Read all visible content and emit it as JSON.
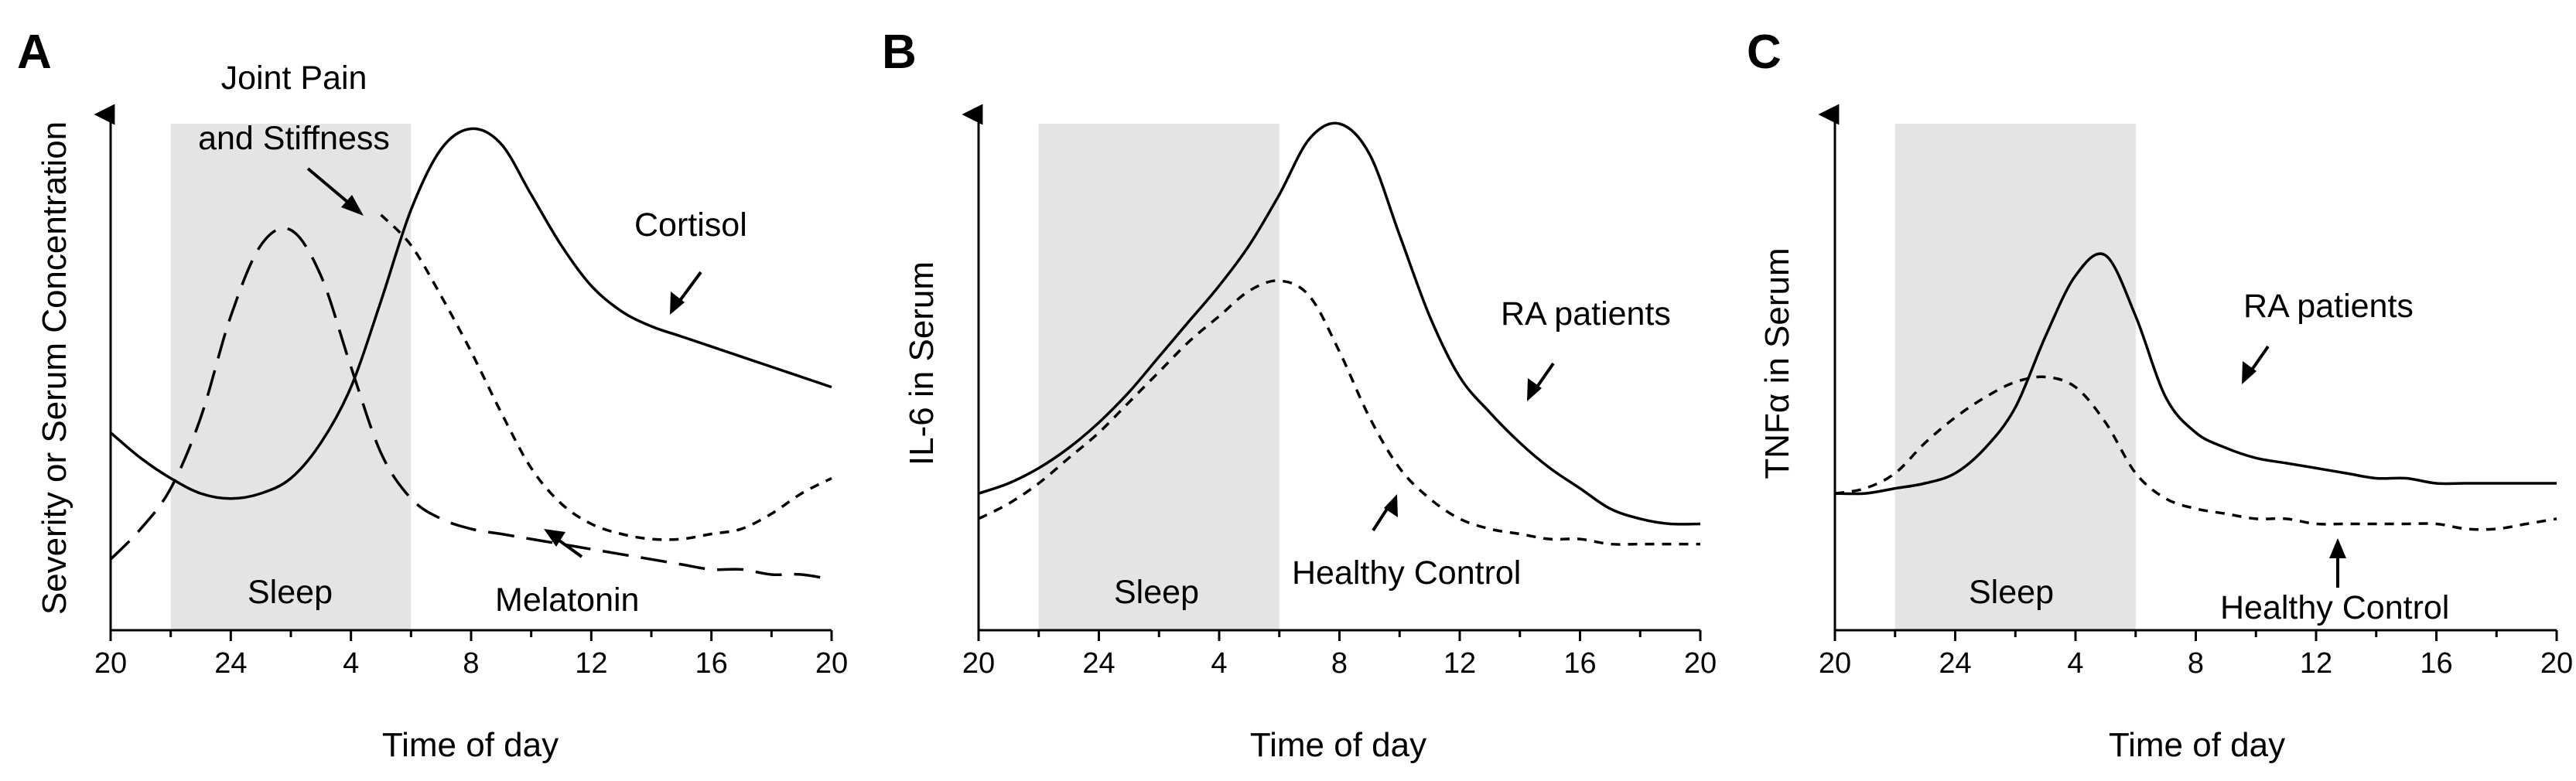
{
  "chart_data": [
    {
      "panel": "A",
      "type": "line",
      "xlabel": "Time of day",
      "ylabel": "Severity or Serum Concentration",
      "x_ticks": [
        "20",
        "24",
        "4",
        "8",
        "12",
        "16",
        "20"
      ],
      "xlim": [
        20,
        44
      ],
      "sleep_band": {
        "label": "Sleep",
        "from": 22,
        "to": 30
      },
      "y_ticks": false,
      "series": [
        {
          "name": "Cortisol",
          "style": "solid",
          "x": [
            20,
            21,
            22,
            23,
            24,
            25,
            26,
            27,
            28,
            29,
            30,
            31,
            32,
            33,
            34,
            35,
            36,
            37,
            38,
            39,
            40,
            41,
            42,
            43,
            44
          ],
          "y": [
            0.39,
            0.34,
            0.3,
            0.27,
            0.26,
            0.27,
            0.3,
            0.37,
            0.48,
            0.65,
            0.83,
            0.95,
            0.99,
            0.96,
            0.86,
            0.76,
            0.68,
            0.63,
            0.6,
            0.58,
            0.56,
            0.54,
            0.52,
            0.5,
            0.48
          ]
        },
        {
          "name": "Melatonin",
          "style": "long-dash",
          "x": [
            20,
            21,
            22,
            23,
            24,
            25,
            26,
            27,
            28,
            29,
            30,
            31,
            32,
            33,
            34,
            35,
            36,
            37,
            38,
            39,
            40,
            41,
            42,
            43,
            44
          ],
          "y": [
            0.14,
            0.2,
            0.28,
            0.42,
            0.62,
            0.76,
            0.79,
            0.7,
            0.52,
            0.35,
            0.26,
            0.22,
            0.2,
            0.19,
            0.18,
            0.17,
            0.16,
            0.15,
            0.14,
            0.13,
            0.12,
            0.12,
            0.11,
            0.11,
            0.1
          ]
        },
        {
          "name": "Joint Pain and Stiffness",
          "style": "short-dash",
          "x": [
            29,
            30,
            31,
            32,
            33,
            34,
            35,
            36,
            37,
            38,
            39,
            40,
            41,
            42,
            43,
            44
          ],
          "y": [
            0.82,
            0.76,
            0.66,
            0.55,
            0.43,
            0.32,
            0.25,
            0.21,
            0.19,
            0.18,
            0.18,
            0.19,
            0.2,
            0.23,
            0.27,
            0.3
          ]
        }
      ],
      "annotations": [
        "Joint Pain",
        "and Stiffness",
        "Cortisol",
        "Melatonin"
      ]
    },
    {
      "panel": "B",
      "type": "line",
      "xlabel": "Time of day",
      "ylabel": "IL-6 in Serum",
      "x_ticks": [
        "20",
        "24",
        "4",
        "8",
        "12",
        "16",
        "20"
      ],
      "xlim": [
        20,
        44
      ],
      "sleep_band": {
        "label": "Sleep",
        "from": 22,
        "to": 30
      },
      "y_ticks": false,
      "series": [
        {
          "name": "RA patients",
          "style": "solid",
          "x": [
            20,
            21,
            22,
            23,
            24,
            25,
            26,
            27,
            28,
            29,
            30,
            31,
            32,
            33,
            34,
            35,
            36,
            37,
            38,
            39,
            40,
            41,
            42,
            43,
            44
          ],
          "y": [
            0.27,
            0.29,
            0.32,
            0.36,
            0.41,
            0.47,
            0.54,
            0.61,
            0.68,
            0.76,
            0.86,
            0.97,
            1.0,
            0.94,
            0.78,
            0.62,
            0.5,
            0.43,
            0.37,
            0.32,
            0.28,
            0.24,
            0.22,
            0.21,
            0.21
          ]
        },
        {
          "name": "Healthy Control",
          "style": "short-dash",
          "x": [
            20,
            21,
            22,
            23,
            24,
            25,
            26,
            27,
            28,
            29,
            30,
            31,
            32,
            33,
            34,
            35,
            36,
            37,
            38,
            39,
            40,
            41,
            42,
            43,
            44
          ],
          "y": [
            0.22,
            0.25,
            0.29,
            0.34,
            0.39,
            0.45,
            0.51,
            0.57,
            0.62,
            0.67,
            0.69,
            0.66,
            0.55,
            0.42,
            0.32,
            0.26,
            0.22,
            0.2,
            0.19,
            0.18,
            0.18,
            0.17,
            0.17,
            0.17,
            0.17
          ]
        }
      ],
      "annotations": [
        "RA patients",
        "Healthy Control"
      ]
    },
    {
      "panel": "C",
      "type": "line",
      "xlabel": "Time of day",
      "ylabel": "TNFα in Serum",
      "x_ticks": [
        "20",
        "24",
        "4",
        "8",
        "12",
        "16",
        "20"
      ],
      "xlim": [
        20,
        44
      ],
      "sleep_band": {
        "label": "Sleep",
        "from": 22,
        "to": 30
      },
      "y_ticks": false,
      "series": [
        {
          "name": "RA patients",
          "style": "solid",
          "x": [
            20,
            21,
            22,
            23,
            24,
            25,
            26,
            27,
            28,
            29,
            30,
            31,
            32,
            33,
            34,
            35,
            36,
            37,
            38,
            39,
            40,
            41,
            42,
            43,
            44
          ],
          "y": [
            0.27,
            0.27,
            0.28,
            0.29,
            0.31,
            0.36,
            0.44,
            0.58,
            0.7,
            0.74,
            0.62,
            0.46,
            0.39,
            0.36,
            0.34,
            0.33,
            0.32,
            0.31,
            0.3,
            0.3,
            0.29,
            0.29,
            0.29,
            0.29,
            0.29
          ]
        },
        {
          "name": "Healthy Control",
          "style": "short-dash",
          "x": [
            20,
            21,
            22,
            23,
            24,
            25,
            26,
            27,
            28,
            29,
            30,
            31,
            32,
            33,
            34,
            35,
            36,
            37,
            38,
            39,
            40,
            41,
            42,
            43,
            44
          ],
          "y": [
            0.27,
            0.28,
            0.31,
            0.37,
            0.42,
            0.46,
            0.49,
            0.5,
            0.48,
            0.41,
            0.31,
            0.26,
            0.24,
            0.23,
            0.22,
            0.22,
            0.21,
            0.21,
            0.21,
            0.21,
            0.21,
            0.2,
            0.2,
            0.21,
            0.22
          ]
        }
      ],
      "annotations": [
        "RA patients",
        "Healthy Control"
      ]
    }
  ]
}
